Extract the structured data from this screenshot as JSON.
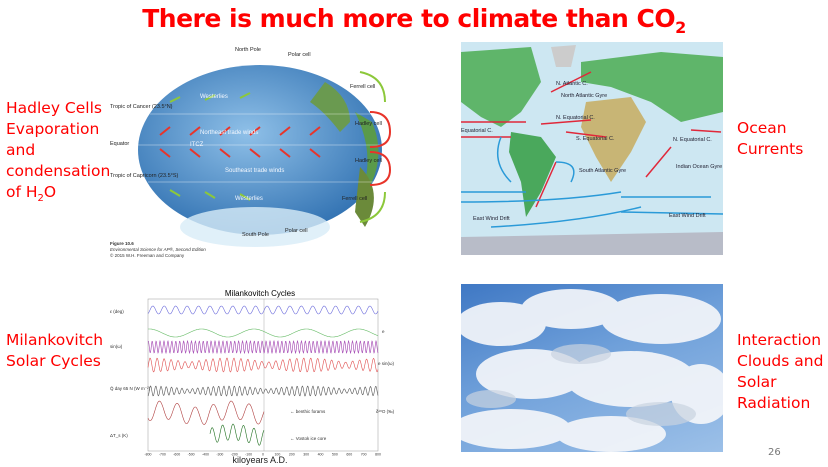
{
  "slide": {
    "title": "There is much more to climate than CO",
    "title_sub": "2",
    "page_number": "26"
  },
  "labels": {
    "hadley": {
      "lines": [
        "Hadley Cells",
        "Evaporation",
        "and",
        "condensation",
        "of H"
      ],
      "sub": "2",
      "tail": "O"
    },
    "ocean": [
      "Ocean",
      "Currents"
    ],
    "milankovitch": [
      "Milankovitch",
      "Solar Cycles"
    ],
    "clouds": [
      "Interaction",
      "Clouds and",
      "Solar",
      "Radiation"
    ]
  },
  "globe_figure": {
    "north_pole": "North Pole",
    "south_pole": "South Pole",
    "polar_cell_top": "Polar cell",
    "polar_cell_bottom": "Polar cell",
    "ferrell_top": "Ferrell cell",
    "ferrell_bottom": "Ferrell cell",
    "hadley_top": "Hadley cell",
    "hadley_bottom": "Hadley cell",
    "tropic_cancer": "Tropic of Cancer (23.5°N)",
    "equator": "Equator",
    "tropic_capricorn": "Tropic of Capricorn (23.5°S)",
    "westerlies": "Westerlies",
    "ne_trades": "Northeast trade winds",
    "itcz": "ITCZ",
    "se_trades": "Southeast trade winds",
    "caption_fig": "Figure 10.6",
    "caption_book": "Environmental Science for AP®, Second Edition",
    "caption_copy": "© 2015 W.H. Freeman and Company"
  },
  "ocean_map": {
    "labels": [
      "N. Atlantic C.",
      "North Atlantic Gyre",
      "N. Equatorial C.",
      "S. Equatorial C.",
      "South Atlantic Gyre",
      "East Wind Drift",
      "Indian Ocean Gyre",
      "N. Equatorial C.",
      "East Wind Drift",
      "Equatorial C."
    ],
    "warm_color": "#e0283a",
    "cold_color": "#2a9ad8"
  },
  "milankovitch_figure": {
    "title": "Milankovitch Cycles",
    "xlabel": "kiloyears A.D.",
    "series_labels": [
      "ε (deg)",
      "e",
      "sin(ω)",
      "e sin(ω)",
      "Q̄ day 65 N (W m⁻²)",
      "δ¹⁸O (‰)",
      "ΔT_s (K)"
    ],
    "annotations": [
      "← benthic forams",
      "← Vostok ice core"
    ],
    "xticks": [
      "-800",
      "-700",
      "-600",
      "-500",
      "-400",
      "-300",
      "-200",
      "-100",
      "0",
      "100",
      "200",
      "300",
      "400",
      "500",
      "600",
      "700",
      "800"
    ],
    "colors": [
      "#6b6bdc",
      "#66bb66",
      "#a040b0",
      "#e05050",
      "#555555",
      "#b04040",
      "#207020"
    ]
  }
}
